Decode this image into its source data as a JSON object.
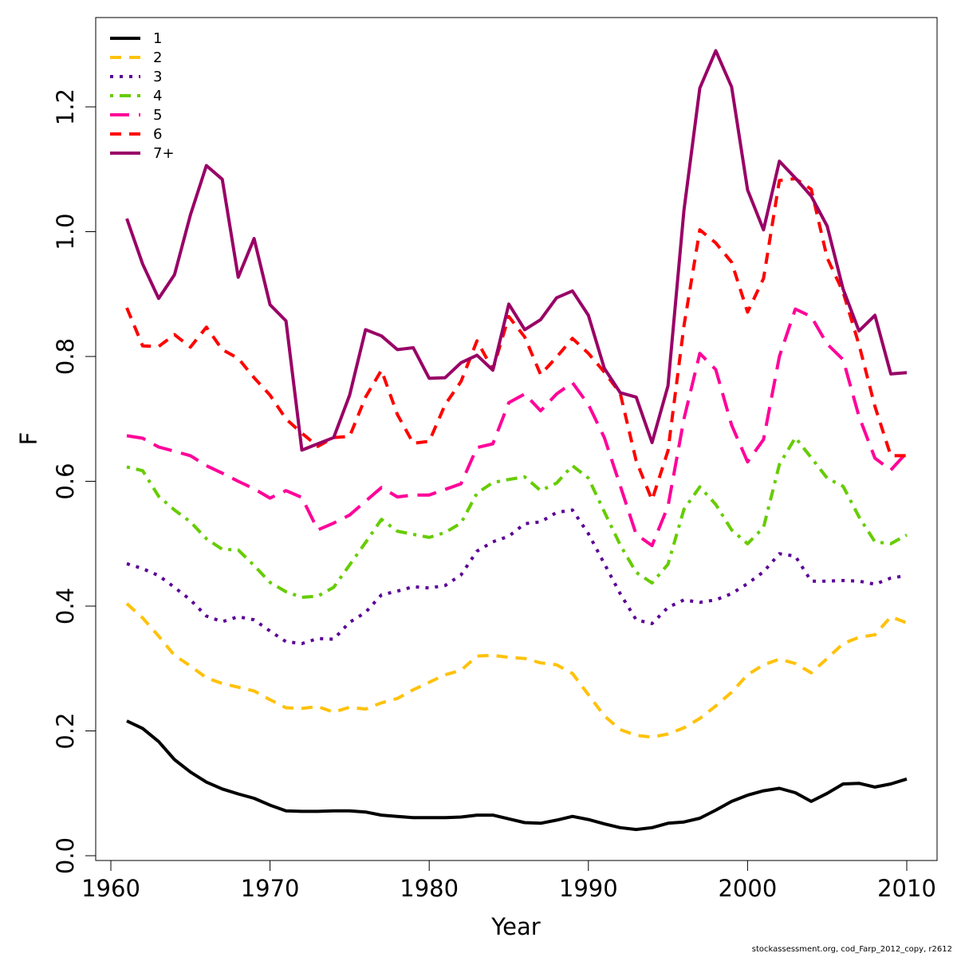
{
  "credit": "stockassessment.org, cod_Farp_2012_copy, r2612",
  "chart_data": {
    "type": "line",
    "title": "",
    "xlabel": "Year",
    "ylabel": "F",
    "xlim": [
      1960,
      2010
    ],
    "ylim": [
      0.0,
      1.3
    ],
    "xticks": [
      "1960",
      "1970",
      "1980",
      "1990",
      "2000",
      "2010"
    ],
    "yticks": [
      "0.0",
      "0.2",
      "0.4",
      "0.6",
      "0.8",
      "1.0",
      "1.2"
    ],
    "grid": false,
    "legend_position": "top-left",
    "x": [
      1961,
      1962,
      1963,
      1964,
      1965,
      1966,
      1967,
      1968,
      1969,
      1970,
      1971,
      1972,
      1973,
      1974,
      1975,
      1976,
      1977,
      1978,
      1979,
      1980,
      1981,
      1982,
      1983,
      1984,
      1985,
      1986,
      1987,
      1988,
      1989,
      1990,
      1991,
      1992,
      1993,
      1994,
      1995,
      1996,
      1997,
      1998,
      1999,
      2000,
      2001,
      2002,
      2003,
      2004,
      2005,
      2006,
      2007,
      2008,
      2009,
      2010
    ],
    "series": [
      {
        "name": "1",
        "color": "#000000",
        "dash": "solid",
        "values": [
          0.216,
          0.204,
          0.183,
          0.154,
          0.134,
          0.118,
          0.107,
          0.099,
          0.092,
          0.081,
          0.072,
          0.071,
          0.071,
          0.072,
          0.072,
          0.07,
          0.065,
          0.063,
          0.061,
          0.061,
          0.061,
          0.062,
          0.065,
          0.065,
          0.059,
          0.053,
          0.052,
          0.057,
          0.063,
          0.058,
          0.051,
          0.045,
          0.042,
          0.045,
          0.052,
          0.054,
          0.06,
          0.073,
          0.087,
          0.097,
          0.104,
          0.108,
          0.101,
          0.087,
          0.1,
          0.115,
          0.116,
          0.11,
          0.115,
          0.123
        ]
      },
      {
        "name": "2",
        "color": "#FFC20A",
        "dash": "dashed",
        "values": [
          0.404,
          0.381,
          0.352,
          0.321,
          0.304,
          0.285,
          0.276,
          0.27,
          0.264,
          0.25,
          0.237,
          0.236,
          0.239,
          0.23,
          0.238,
          0.235,
          0.245,
          0.252,
          0.266,
          0.278,
          0.29,
          0.297,
          0.32,
          0.321,
          0.318,
          0.316,
          0.309,
          0.306,
          0.292,
          0.258,
          0.224,
          0.202,
          0.193,
          0.19,
          0.195,
          0.205,
          0.22,
          0.24,
          0.262,
          0.29,
          0.306,
          0.315,
          0.308,
          0.293,
          0.316,
          0.34,
          0.35,
          0.354,
          0.383,
          0.373
        ]
      },
      {
        "name": "3",
        "color": "#5B0095",
        "dash": "dotted",
        "values": [
          0.468,
          0.46,
          0.449,
          0.43,
          0.41,
          0.384,
          0.375,
          0.383,
          0.378,
          0.36,
          0.343,
          0.34,
          0.348,
          0.347,
          0.374,
          0.39,
          0.418,
          0.424,
          0.431,
          0.429,
          0.433,
          0.45,
          0.488,
          0.503,
          0.512,
          0.532,
          0.535,
          0.55,
          0.554,
          0.516,
          0.468,
          0.42,
          0.378,
          0.372,
          0.398,
          0.41,
          0.406,
          0.41,
          0.42,
          0.436,
          0.455,
          0.484,
          0.48,
          0.44,
          0.44,
          0.441,
          0.44,
          0.435,
          0.445,
          0.449
        ]
      },
      {
        "name": "4",
        "color": "#66CC00",
        "dash": "dotdash",
        "values": [
          0.623,
          0.617,
          0.576,
          0.554,
          0.535,
          0.508,
          0.491,
          0.49,
          0.465,
          0.438,
          0.423,
          0.414,
          0.416,
          0.43,
          0.466,
          0.502,
          0.539,
          0.52,
          0.515,
          0.51,
          0.518,
          0.533,
          0.581,
          0.598,
          0.603,
          0.607,
          0.585,
          0.597,
          0.625,
          0.605,
          0.551,
          0.498,
          0.454,
          0.437,
          0.467,
          0.555,
          0.591,
          0.563,
          0.522,
          0.5,
          0.526,
          0.627,
          0.67,
          0.638,
          0.605,
          0.592,
          0.543,
          0.503,
          0.5,
          0.514
        ]
      },
      {
        "name": "5",
        "color": "#FF0099",
        "dash": "longdash",
        "values": [
          0.673,
          0.669,
          0.655,
          0.648,
          0.641,
          0.625,
          0.613,
          0.6,
          0.588,
          0.573,
          0.585,
          0.574,
          0.522,
          0.533,
          0.546,
          0.568,
          0.59,
          0.575,
          0.578,
          0.578,
          0.587,
          0.596,
          0.654,
          0.66,
          0.726,
          0.74,
          0.713,
          0.74,
          0.758,
          0.723,
          0.67,
          0.593,
          0.515,
          0.497,
          0.56,
          0.7,
          0.805,
          0.779,
          0.69,
          0.631,
          0.667,
          0.8,
          0.876,
          0.864,
          0.82,
          0.795,
          0.704,
          0.637,
          0.618,
          0.646
        ]
      },
      {
        "name": "6",
        "color": "#FF0000",
        "dash": "dashed",
        "values": [
          0.878,
          0.817,
          0.816,
          0.835,
          0.815,
          0.847,
          0.811,
          0.797,
          0.766,
          0.738,
          0.7,
          0.677,
          0.656,
          0.67,
          0.672,
          0.735,
          0.778,
          0.707,
          0.661,
          0.664,
          0.723,
          0.76,
          0.825,
          0.779,
          0.864,
          0.831,
          0.771,
          0.799,
          0.829,
          0.805,
          0.775,
          0.741,
          0.633,
          0.57,
          0.649,
          0.849,
          1.003,
          0.982,
          0.951,
          0.871,
          0.925,
          1.082,
          1.085,
          1.068,
          0.958,
          0.903,
          0.819,
          0.72,
          0.641,
          0.641
        ]
      },
      {
        "name": "7+",
        "color": "#990066",
        "dash": "solid",
        "values": [
          1.021,
          0.948,
          0.893,
          0.931,
          1.027,
          1.106,
          1.084,
          0.927,
          0.989,
          0.883,
          0.857,
          0.65,
          0.66,
          0.67,
          0.738,
          0.843,
          0.833,
          0.811,
          0.814,
          0.765,
          0.766,
          0.79,
          0.802,
          0.778,
          0.884,
          0.843,
          0.859,
          0.894,
          0.905,
          0.866,
          0.781,
          0.742,
          0.735,
          0.662,
          0.753,
          1.034,
          1.23,
          1.29,
          1.232,
          1.067,
          1.003,
          1.113,
          1.086,
          1.057,
          1.009,
          0.908,
          0.841,
          0.866,
          0.772,
          0.774
        ]
      }
    ]
  }
}
